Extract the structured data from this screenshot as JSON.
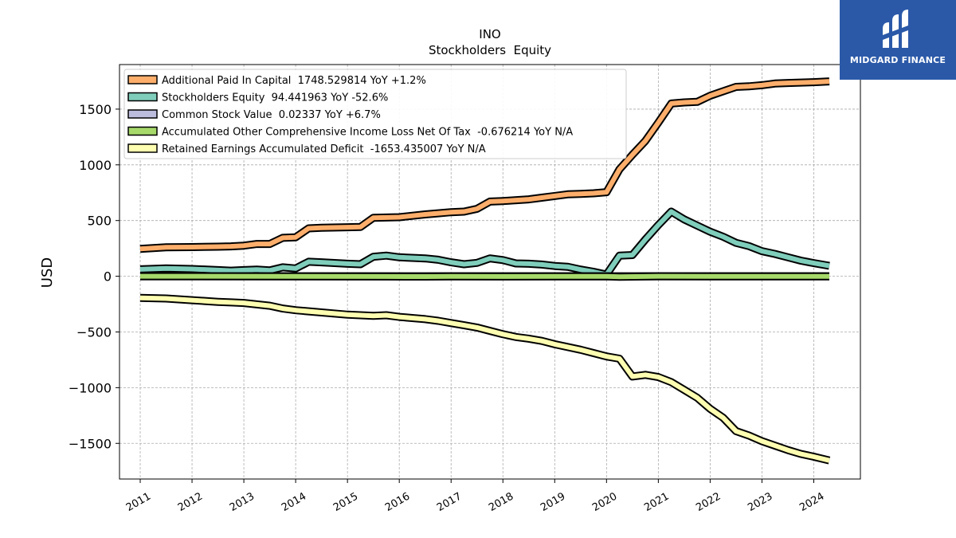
{
  "brand": {
    "name": "MIDGARD FINANCE",
    "bg_color": "#2b59a8"
  },
  "chart_data": {
    "type": "line",
    "title": "INO",
    "subtitle": "Stockholders  Equity",
    "ylabel": "USD",
    "xlabel": "",
    "xlim": [
      2010.6,
      2024.9
    ],
    "ylim": [
      -1820,
      1900
    ],
    "x_ticks": [
      "2011",
      "2012",
      "2013",
      "2014",
      "2015",
      "2016",
      "2017",
      "2018",
      "2019",
      "2020",
      "2021",
      "2022",
      "2023",
      "2024"
    ],
    "y_ticks": [
      -1500,
      -1000,
      -500,
      0,
      500,
      1000,
      1500
    ],
    "y_tick_labels": [
      "−1500",
      "−1000",
      "−500",
      "0",
      "500",
      "1000",
      "1500"
    ],
    "grid": true,
    "legend_position": "top-left",
    "series": [
      {
        "name": "Additional Paid In Capital",
        "legend_label": "Additional Paid In Capital  1748.529814 YoY +1.2%",
        "color": "#fdae6b",
        "points": [
          [
            2011.0,
            245
          ],
          [
            2011.5,
            260
          ],
          [
            2012.0,
            262
          ],
          [
            2012.5,
            265
          ],
          [
            2012.75,
            268
          ],
          [
            2013.0,
            275
          ],
          [
            2013.25,
            290
          ],
          [
            2013.5,
            290
          ],
          [
            2013.75,
            345
          ],
          [
            2014.0,
            350
          ],
          [
            2014.25,
            430
          ],
          [
            2014.5,
            435
          ],
          [
            2015.0,
            440
          ],
          [
            2015.25,
            442
          ],
          [
            2015.5,
            525
          ],
          [
            2016.0,
            530
          ],
          [
            2016.5,
            555
          ],
          [
            2016.75,
            565
          ],
          [
            2017.0,
            575
          ],
          [
            2017.25,
            580
          ],
          [
            2017.5,
            605
          ],
          [
            2017.75,
            670
          ],
          [
            2018.0,
            675
          ],
          [
            2018.5,
            690
          ],
          [
            2018.75,
            705
          ],
          [
            2019.0,
            720
          ],
          [
            2019.25,
            735
          ],
          [
            2019.5,
            740
          ],
          [
            2019.75,
            745
          ],
          [
            2020.0,
            755
          ],
          [
            2020.25,
            960
          ],
          [
            2020.5,
            1090
          ],
          [
            2020.75,
            1215
          ],
          [
            2021.0,
            1380
          ],
          [
            2021.25,
            1550
          ],
          [
            2021.5,
            1560
          ],
          [
            2021.75,
            1565
          ],
          [
            2022.0,
            1620
          ],
          [
            2022.25,
            1660
          ],
          [
            2022.5,
            1700
          ],
          [
            2022.75,
            1705
          ],
          [
            2023.0,
            1715
          ],
          [
            2023.25,
            1730
          ],
          [
            2023.5,
            1735
          ],
          [
            2023.75,
            1738
          ],
          [
            2024.0,
            1742
          ],
          [
            2024.3,
            1749
          ]
        ]
      },
      {
        "name": "Stockholders Equity",
        "legend_label": "Stockholders Equity  94.441963 YoY -52.6%",
        "color": "#7fcdbb",
        "points": [
          [
            2011.0,
            62
          ],
          [
            2011.5,
            70
          ],
          [
            2012.0,
            65
          ],
          [
            2012.5,
            55
          ],
          [
            2012.75,
            50
          ],
          [
            2013.0,
            55
          ],
          [
            2013.25,
            60
          ],
          [
            2013.5,
            52
          ],
          [
            2013.75,
            80
          ],
          [
            2014.0,
            70
          ],
          [
            2014.25,
            130
          ],
          [
            2014.5,
            125
          ],
          [
            2015.0,
            112
          ],
          [
            2015.25,
            108
          ],
          [
            2015.5,
            175
          ],
          [
            2015.75,
            185
          ],
          [
            2016.0,
            170
          ],
          [
            2016.5,
            160
          ],
          [
            2016.75,
            148
          ],
          [
            2017.0,
            125
          ],
          [
            2017.25,
            108
          ],
          [
            2017.5,
            120
          ],
          [
            2017.75,
            160
          ],
          [
            2018.0,
            145
          ],
          [
            2018.25,
            115
          ],
          [
            2018.5,
            112
          ],
          [
            2018.75,
            105
          ],
          [
            2019.0,
            92
          ],
          [
            2019.25,
            85
          ],
          [
            2019.5,
            60
          ],
          [
            2019.75,
            40
          ],
          [
            2020.0,
            15
          ],
          [
            2020.25,
            185
          ],
          [
            2020.5,
            190
          ],
          [
            2020.75,
            330
          ],
          [
            2021.0,
            460
          ],
          [
            2021.25,
            580
          ],
          [
            2021.5,
            510
          ],
          [
            2021.75,
            455
          ],
          [
            2022.0,
            400
          ],
          [
            2022.25,
            355
          ],
          [
            2022.5,
            300
          ],
          [
            2022.75,
            270
          ],
          [
            2023.0,
            225
          ],
          [
            2023.25,
            200
          ],
          [
            2023.5,
            170
          ],
          [
            2023.75,
            140
          ],
          [
            2024.0,
            118
          ],
          [
            2024.3,
            94
          ]
        ]
      },
      {
        "name": "Common Stock Value",
        "legend_label": "Common Stock Value  0.02337 YoY +6.7%",
        "color": "#bcbddc",
        "points": [
          [
            2011.0,
            0.01
          ],
          [
            2024.3,
            0.02
          ]
        ]
      },
      {
        "name": "Accumulated Other Comprehensive Income Loss Net Of Tax",
        "legend_label": "Accumulated Other Comprehensive Income Loss Net Of Tax  -0.676214 YoY N/A",
        "color": "#a6d96a",
        "points": [
          [
            2011.0,
            0
          ],
          [
            2015.75,
            -2
          ],
          [
            2016.5,
            -3
          ],
          [
            2017.0,
            -1
          ],
          [
            2018.0,
            -2
          ],
          [
            2019.0,
            -1
          ],
          [
            2020.0,
            -1
          ],
          [
            2020.25,
            -5
          ],
          [
            2021.0,
            0
          ],
          [
            2022.0,
            -1
          ],
          [
            2024.3,
            -1
          ]
        ]
      },
      {
        "name": "Retained Earnings Accumulated Deficit",
        "legend_label": "Retained Earnings Accumulated Deficit  -1653.435007 YoY N/A",
        "color": "#ffffb2",
        "points": [
          [
            2011.0,
            -195
          ],
          [
            2011.5,
            -200
          ],
          [
            2012.0,
            -215
          ],
          [
            2012.5,
            -230
          ],
          [
            2012.75,
            -235
          ],
          [
            2013.0,
            -240
          ],
          [
            2013.5,
            -265
          ],
          [
            2013.75,
            -290
          ],
          [
            2014.0,
            -305
          ],
          [
            2014.5,
            -325
          ],
          [
            2015.0,
            -345
          ],
          [
            2015.25,
            -350
          ],
          [
            2015.5,
            -355
          ],
          [
            2015.75,
            -350
          ],
          [
            2016.0,
            -365
          ],
          [
            2016.25,
            -375
          ],
          [
            2016.5,
            -385
          ],
          [
            2016.75,
            -400
          ],
          [
            2017.0,
            -420
          ],
          [
            2017.25,
            -440
          ],
          [
            2017.5,
            -460
          ],
          [
            2017.75,
            -490
          ],
          [
            2018.0,
            -520
          ],
          [
            2018.25,
            -545
          ],
          [
            2018.5,
            -560
          ],
          [
            2018.75,
            -580
          ],
          [
            2019.0,
            -610
          ],
          [
            2019.5,
            -660
          ],
          [
            2019.75,
            -690
          ],
          [
            2020.0,
            -720
          ],
          [
            2020.25,
            -740
          ],
          [
            2020.5,
            -900
          ],
          [
            2020.75,
            -885
          ],
          [
            2021.0,
            -905
          ],
          [
            2021.25,
            -950
          ],
          [
            2021.5,
            -1020
          ],
          [
            2021.75,
            -1090
          ],
          [
            2022.0,
            -1190
          ],
          [
            2022.25,
            -1270
          ],
          [
            2022.5,
            -1390
          ],
          [
            2022.75,
            -1430
          ],
          [
            2023.0,
            -1480
          ],
          [
            2023.25,
            -1520
          ],
          [
            2023.5,
            -1560
          ],
          [
            2023.75,
            -1595
          ],
          [
            2024.0,
            -1620
          ],
          [
            2024.3,
            -1653
          ]
        ]
      }
    ]
  }
}
